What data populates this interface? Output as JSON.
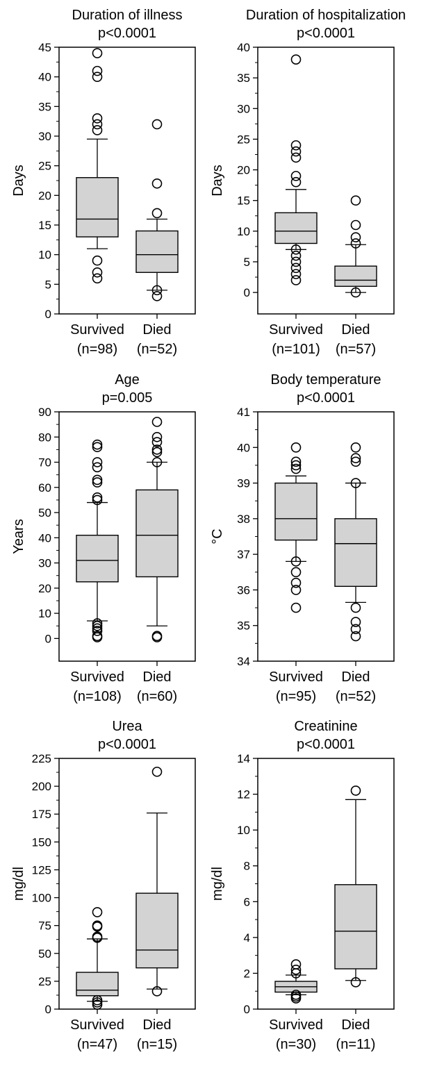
{
  "chart_data": [
    {
      "type": "boxplot",
      "title": "Duration of illness",
      "subtitle": "p<0.0001",
      "ylabel": "Days",
      "ylim": [
        0,
        45
      ],
      "yticks": [
        0,
        5,
        10,
        15,
        20,
        25,
        30,
        35,
        40,
        45
      ],
      "categories": [
        "Survived",
        "Died"
      ],
      "category_counts": [
        "(n=98)",
        "(n=52)"
      ],
      "boxes": [
        {
          "whisker_low": 11,
          "q1": 13,
          "median": 16,
          "q3": 23,
          "whisker_high": 29.5,
          "outliers": [
            44,
            41,
            40,
            33,
            32,
            31,
            9,
            7,
            6
          ]
        },
        {
          "whisker_low": 4,
          "q1": 7,
          "median": 10,
          "q3": 14,
          "whisker_high": 16,
          "outliers": [
            32,
            22,
            17,
            4,
            3
          ]
        }
      ]
    },
    {
      "type": "boxplot",
      "title": "Duration of hospitalization",
      "subtitle": "p<0.0001",
      "ylabel": "Days",
      "ylim": [
        -3.5,
        40
      ],
      "yticks": [
        0,
        5,
        10,
        15,
        20,
        25,
        30,
        35,
        40
      ],
      "categories": [
        "Survived",
        "Died"
      ],
      "category_counts": [
        "(n=101)",
        "(n=57)"
      ],
      "boxes": [
        {
          "whisker_low": 7,
          "q1": 8,
          "median": 10,
          "q3": 13,
          "whisker_high": 16.8,
          "outliers": [
            38,
            24,
            23,
            22,
            19,
            18,
            7,
            6,
            5,
            4,
            3,
            2
          ]
        },
        {
          "whisker_low": 0,
          "q1": 1,
          "median": 2,
          "q3": 4.3,
          "whisker_high": 7.8,
          "outliers": [
            15,
            11,
            9,
            8,
            0
          ]
        }
      ]
    },
    {
      "type": "boxplot",
      "title": "Age",
      "subtitle": "p=0.005",
      "ylabel": "Years",
      "ylim": [
        -9,
        90
      ],
      "yticks": [
        0,
        10,
        20,
        30,
        40,
        50,
        60,
        70,
        80,
        90
      ],
      "categories": [
        "Survived",
        "Died"
      ],
      "category_counts": [
        "(n=108)",
        "(n=60)"
      ],
      "boxes": [
        {
          "whisker_low": 7,
          "q1": 22.5,
          "median": 31,
          "q3": 41,
          "whisker_high": 54,
          "outliers": [
            77,
            76,
            70,
            68,
            63,
            62,
            56,
            55,
            6,
            5,
            4,
            3,
            1,
            0.5
          ]
        },
        {
          "whisker_low": 5,
          "q1": 24.5,
          "median": 41,
          "q3": 59,
          "whisker_high": 70,
          "outliers": [
            86,
            80,
            78,
            75,
            74,
            70,
            1,
            0.5
          ]
        }
      ]
    },
    {
      "type": "boxplot",
      "title": "Body temperature",
      "subtitle": "p<0.0001",
      "ylabel": "°C",
      "ylim": [
        34,
        41
      ],
      "yticks": [
        34,
        35,
        36,
        37,
        38,
        39,
        40,
        41
      ],
      "categories": [
        "Survived",
        "Died"
      ],
      "category_counts": [
        "(n=95)",
        "(n=52)"
      ],
      "boxes": [
        {
          "whisker_low": 36.8,
          "q1": 37.4,
          "median": 38,
          "q3": 39,
          "whisker_high": 39.2,
          "outliers": [
            40,
            39.6,
            39.5,
            39.4,
            36.8,
            36.5,
            36.2,
            36,
            35.5
          ]
        },
        {
          "whisker_low": 35.65,
          "q1": 36.1,
          "median": 37.3,
          "q3": 38,
          "whisker_high": 39,
          "outliers": [
            40,
            39.7,
            39.6,
            39,
            35.5,
            35.1,
            34.9,
            34.7
          ]
        }
      ]
    },
    {
      "type": "boxplot",
      "title": "Urea",
      "subtitle": "p<0.0001",
      "ylabel": "mg/dl",
      "ylim": [
        0,
        225
      ],
      "yticks": [
        0,
        25,
        50,
        75,
        100,
        125,
        150,
        175,
        200,
        225
      ],
      "categories": [
        "Survived",
        "Died"
      ],
      "category_counts": [
        "(n=47)",
        "(n=15)"
      ],
      "boxes": [
        {
          "whisker_low": 7,
          "q1": 12,
          "median": 17,
          "q3": 33,
          "whisker_high": 63,
          "outliers": [
            87,
            75,
            74,
            65,
            64,
            8,
            6,
            4
          ]
        },
        {
          "whisker_low": 18,
          "q1": 37,
          "median": 53,
          "q3": 104,
          "whisker_high": 176,
          "outliers": [
            213,
            16
          ]
        }
      ]
    },
    {
      "type": "boxplot",
      "title": "Creatinine",
      "subtitle": "p<0.0001",
      "ylabel": "mg/dl",
      "ylim": [
        0,
        14
      ],
      "yticks": [
        0,
        2,
        4,
        6,
        8,
        10,
        12,
        14
      ],
      "categories": [
        "Survived",
        "Died"
      ],
      "category_counts": [
        "(n=30)",
        "(n=11)"
      ],
      "boxes": [
        {
          "whisker_low": 0.8,
          "q1": 0.95,
          "median": 1.25,
          "q3": 1.55,
          "whisker_high": 1.9,
          "outliers": [
            2.5,
            2.2,
            2.0,
            0.8,
            0.7,
            0.6
          ]
        },
        {
          "whisker_low": 1.6,
          "q1": 2.25,
          "median": 4.35,
          "q3": 6.95,
          "whisker_high": 11.7,
          "outliers": [
            12.2,
            1.5
          ]
        }
      ]
    }
  ]
}
